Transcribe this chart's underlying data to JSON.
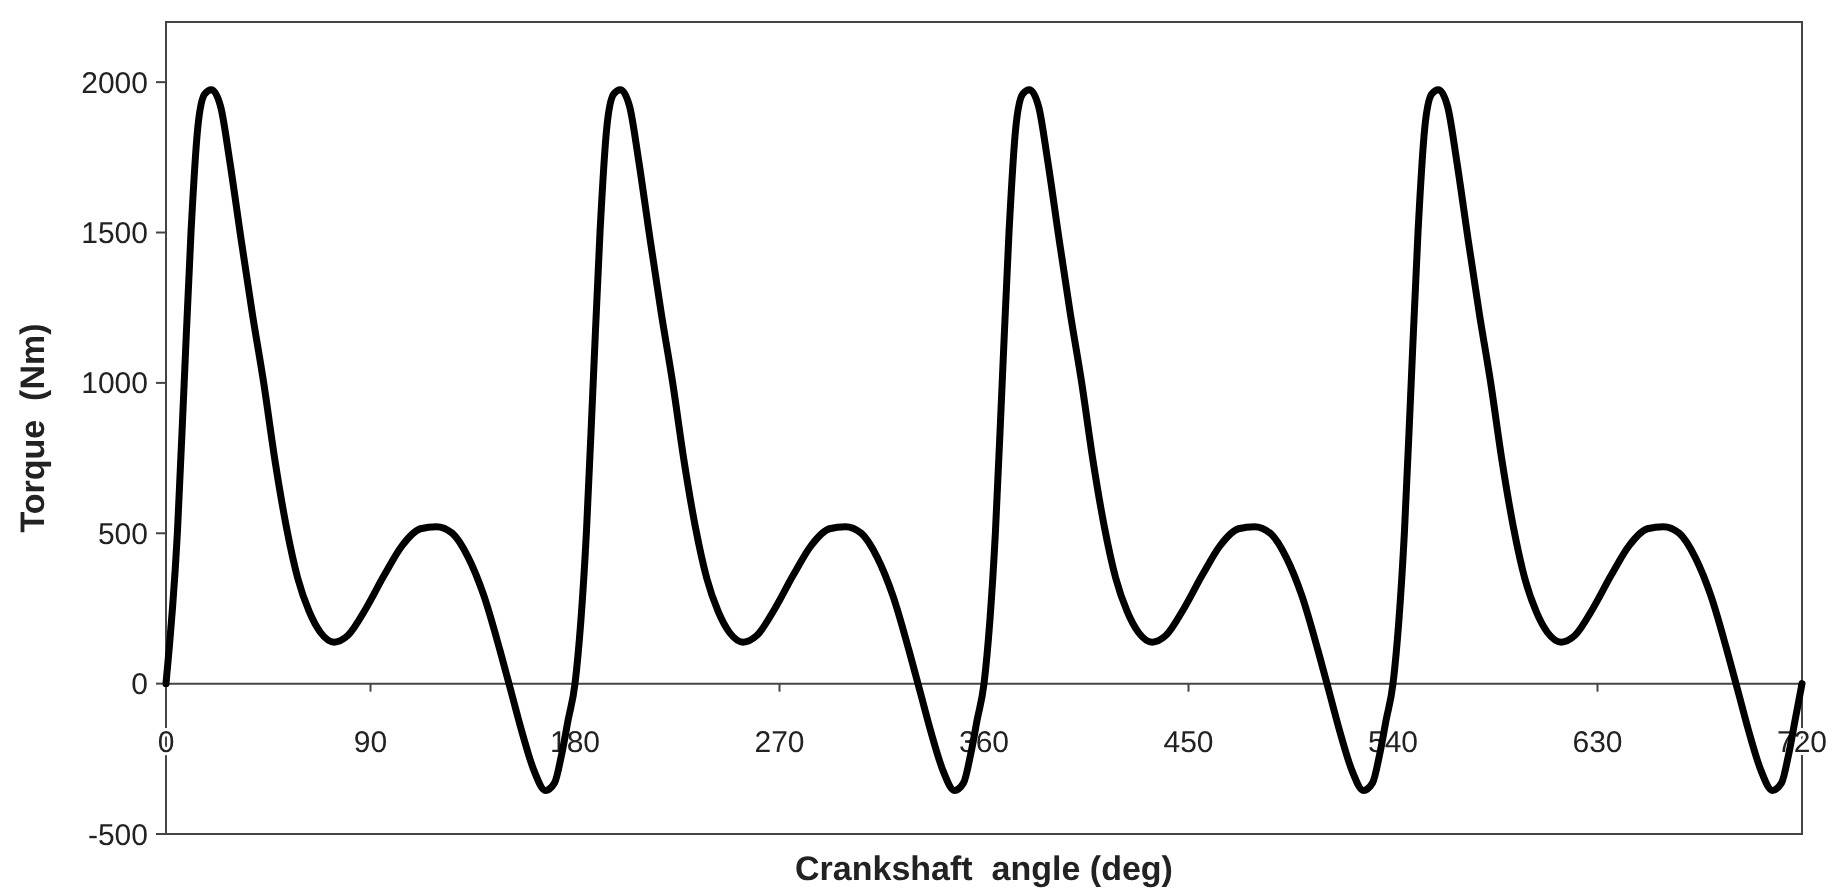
{
  "chart_data": {
    "type": "line",
    "xlabel": "Crankshaft  angle (deg)",
    "ylabel": "Torque  (Nm)",
    "xlim": [
      0,
      720
    ],
    "ylim": [
      -500,
      2200
    ],
    "xticks": [
      0,
      90,
      180,
      270,
      360,
      450,
      540,
      630,
      720
    ],
    "yticks": [
      -500,
      0,
      500,
      1000,
      1500,
      2000
    ],
    "marker": "none",
    "line_style": "solid",
    "series": [
      {
        "color": "#000000",
        "x": [
          0,
          5,
          8,
          11,
          14,
          17,
          20,
          24,
          28,
          33,
          38,
          43,
          48,
          53,
          58,
          63,
          68,
          74,
          80,
          88,
          96,
          104,
          112,
          119,
          126,
          133,
          140,
          147,
          152,
          157,
          162,
          167,
          171,
          174,
          177,
          180,
          185,
          188,
          191,
          194,
          197,
          200,
          204,
          208,
          213,
          218,
          223,
          228,
          233,
          238,
          243,
          248,
          254,
          260,
          268,
          276,
          284,
          292,
          299,
          306,
          313,
          320,
          327,
          332,
          337,
          342,
          347,
          351,
          354,
          357,
          360,
          365,
          368,
          371,
          374,
          377,
          380,
          384,
          388,
          393,
          398,
          403,
          408,
          413,
          418,
          423,
          428,
          434,
          440,
          448,
          456,
          464,
          472,
          479,
          486,
          493,
          500,
          507,
          512,
          517,
          522,
          527,
          531,
          534,
          537,
          540,
          545,
          548,
          551,
          554,
          557,
          560,
          564,
          568,
          573,
          578,
          583,
          588,
          593,
          598,
          603,
          608,
          614,
          620,
          628,
          636,
          644,
          652,
          659,
          666,
          673,
          680,
          687,
          692,
          697,
          702,
          707,
          711,
          714,
          717,
          720
        ],
        "values": [
          0,
          500,
          1000,
          1500,
          1850,
          1960,
          1975,
          1920,
          1740,
          1480,
          1230,
          1000,
          740,
          520,
          350,
          240,
          170,
          138,
          160,
          250,
          360,
          460,
          515,
          522,
          500,
          420,
          290,
          110,
          -30,
          -170,
          -290,
          -355,
          -330,
          -240,
          -120,
          0,
          500,
          1000,
          1500,
          1850,
          1960,
          1975,
          1920,
          1740,
          1480,
          1230,
          1000,
          740,
          520,
          350,
          240,
          170,
          138,
          160,
          250,
          360,
          460,
          515,
          522,
          500,
          420,
          290,
          110,
          -30,
          -170,
          -290,
          -355,
          -330,
          -240,
          -120,
          0,
          500,
          1000,
          1500,
          1850,
          1960,
          1975,
          1920,
          1740,
          1480,
          1230,
          1000,
          740,
          520,
          350,
          240,
          170,
          138,
          160,
          250,
          360,
          460,
          515,
          522,
          500,
          420,
          290,
          110,
          -30,
          -170,
          -290,
          -355,
          -330,
          -240,
          -120,
          0,
          500,
          1000,
          1500,
          1850,
          1960,
          1975,
          1920,
          1740,
          1480,
          1230,
          1000,
          740,
          520,
          350,
          240,
          170,
          138,
          160,
          250,
          360,
          460,
          515,
          522,
          500,
          420,
          290,
          110,
          -30,
          -170,
          -290,
          -355,
          -330,
          -240,
          -120,
          0
        ]
      }
    ]
  }
}
